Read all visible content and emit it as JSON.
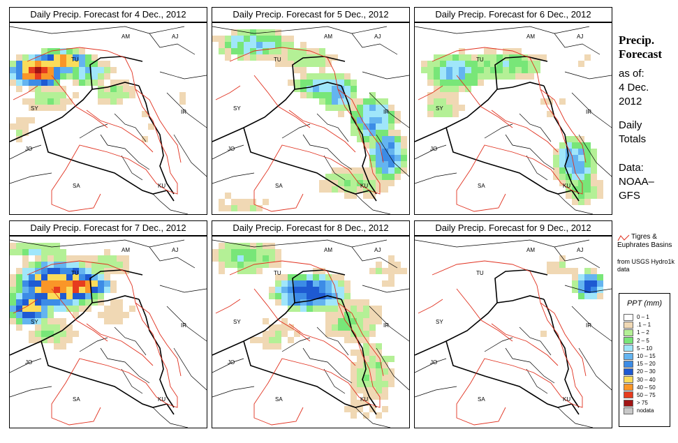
{
  "panels": [
    {
      "id": "p1",
      "title": "Daily Precip. Forecast for  4 Dec., 2012"
    },
    {
      "id": "p2",
      "title": "Daily Precip. Forecast for  5 Dec., 2012"
    },
    {
      "id": "p3",
      "title": "Daily Precip. Forecast for  6 Dec., 2012"
    },
    {
      "id": "p4",
      "title": "Daily Precip. Forecast for  7 Dec., 2012"
    },
    {
      "id": "p5",
      "title": "Daily Precip. Forecast for  8 Dec., 2012"
    },
    {
      "id": "p6",
      "title": "Daily Precip. Forecast for  9 Dec., 2012"
    }
  ],
  "country_labels": {
    "AM": "AM",
    "AJ": "AJ",
    "TU": "TU",
    "SY": "SY",
    "IR": "IR",
    "JO": "JO",
    "SA": "SA",
    "KU": "KU"
  },
  "sidebar": {
    "title_line1": "Precip.",
    "title_line2": "Forecast",
    "asof_line1": "as of:",
    "asof_line2": "4 Dec.",
    "asof_line3": "2012",
    "daily_line1": "Daily",
    "daily_line2": "Totals",
    "data_line1": "Data:",
    "data_line2": "NOAA–",
    "data_line3": "GFS"
  },
  "basin_legend": {
    "label": "Tigres & Euphrates Basins",
    "source": "from USGS Hydro1k data",
    "line_color": "#e0301e"
  },
  "key": {
    "title": "PPT (mm)",
    "classes": [
      {
        "label": "0 – 1",
        "color": "#ffffff"
      },
      {
        "label": ".1 – 1",
        "color": "#f0d8b4"
      },
      {
        "label": "1 – 2",
        "color": "#b4f096"
      },
      {
        "label": "2 – 5",
        "color": "#78e678"
      },
      {
        "label": "5 – 10",
        "color": "#a0e6fa"
      },
      {
        "label": "10 – 15",
        "color": "#64b4f0"
      },
      {
        "label": "15 – 20",
        "color": "#3c8ce6"
      },
      {
        "label": "20 – 30",
        "color": "#1e5ad2"
      },
      {
        "label": "30 – 40",
        "color": "#fadc5a"
      },
      {
        "label": "40 – 50",
        "color": "#fa9628"
      },
      {
        "label": "50 – 75",
        "color": "#e63c1e"
      },
      {
        "label": "> 75",
        "color": "#a01414"
      },
      {
        "label": "nodata",
        "color": "#c8c8c8"
      }
    ]
  }
}
